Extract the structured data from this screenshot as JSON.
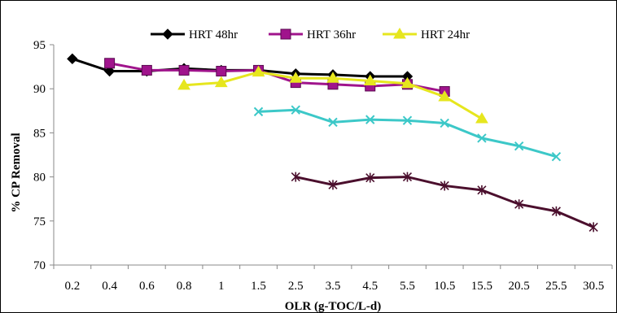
{
  "chart_data": {
    "type": "line",
    "title": "",
    "xlabel": "OLR (g-TOC/L-d)",
    "ylabel": "% CP Removal",
    "ylim": [
      70,
      95
    ],
    "yticks": [
      "70",
      "75",
      "80",
      "85",
      "90",
      "95"
    ],
    "categories": [
      "0.2",
      "0.4",
      "0.6",
      "0.8",
      "1",
      "1.5",
      "2.5",
      "3.5",
      "4.5",
      "5.5",
      "10.5",
      "15.5",
      "20.5",
      "25.5",
      "30.5"
    ],
    "legend_position": "top",
    "grid": false,
    "series": [
      {
        "name": "HRT 48hr",
        "color": "#000000",
        "marker": "diamond",
        "values": [
          93.4,
          92.0,
          92.0,
          92.3,
          92.1,
          92.1,
          91.7,
          91.6,
          91.4,
          91.4,
          null,
          null,
          null,
          null,
          null
        ]
      },
      {
        "name": "HRT 36hr",
        "color": "#A0148C",
        "marker": "square",
        "values": [
          null,
          92.9,
          92.1,
          92.1,
          92.0,
          92.1,
          90.7,
          90.5,
          90.3,
          90.5,
          89.7,
          null,
          null,
          null,
          null
        ]
      },
      {
        "name": "HRT 24hr",
        "color": "#E6E61E",
        "marker": "triangle",
        "values": [
          null,
          null,
          null,
          90.4,
          90.7,
          91.9,
          91.2,
          91.2,
          90.9,
          90.6,
          89.1,
          86.6,
          null,
          null,
          null
        ]
      },
      {
        "color": "#3CC8C8",
        "marker": "x",
        "values": [
          null,
          null,
          null,
          null,
          null,
          87.4,
          87.6,
          86.2,
          86.5,
          86.4,
          86.1,
          84.4,
          83.5,
          82.3,
          null
        ]
      },
      {
        "color": "#4B0F2D",
        "marker": "star",
        "values": [
          null,
          null,
          null,
          null,
          null,
          null,
          80.0,
          79.1,
          79.9,
          80.0,
          79.0,
          78.5,
          76.9,
          76.1,
          74.3
        ]
      }
    ]
  }
}
